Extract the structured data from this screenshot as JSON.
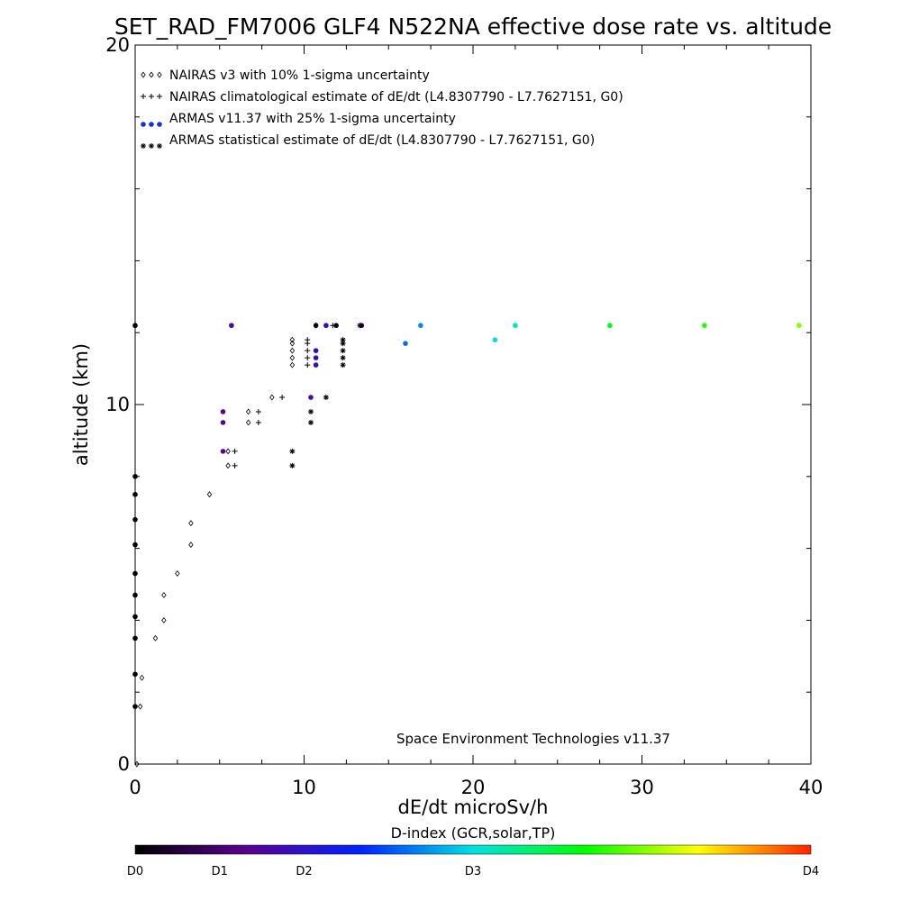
{
  "chart_data": {
    "type": "scatter",
    "title": "SET_RAD_FM7006  GLF4 N522NA effective dose rate vs. altitude",
    "xlabel": "dE/dt microSv/h",
    "ylabel": "altitude (km)",
    "xlim": [
      0,
      40
    ],
    "ylim": [
      0,
      20
    ],
    "x_ticks": [
      0,
      10,
      20,
      30,
      40
    ],
    "y_ticks": [
      0,
      10,
      20
    ],
    "grid": false,
    "legend_position": "top-left",
    "credit": "Space Environment Technologies v11.37",
    "legend": [
      {
        "label": "NAIRAS v3 with 10% 1-sigma uncertainty",
        "marker": "diamond"
      },
      {
        "label": "NAIRAS climatological estimate of dE/dt (L4.8307790 - L7.7627151, G0)",
        "marker": "plus"
      },
      {
        "label": "ARMAS v11.37 with 25% 1-sigma uncertainty",
        "marker": "dot"
      },
      {
        "label": "ARMAS statistical estimate of dE/dt (L4.8307790 - L7.7627151, G0)",
        "marker": "asterisk"
      }
    ],
    "colorbar": {
      "title": "D-index (GCR,solar,TP)",
      "labels": [
        "D0",
        "D1",
        "D2",
        "D3",
        "D4"
      ],
      "colors": [
        "#000000",
        "#5a0090",
        "#0022ff",
        "#00e0e0",
        "#00ff00",
        "#ffff00",
        "#ff2200"
      ]
    },
    "series": [
      {
        "name": "NAIRAS v3 with 10% 1-sigma uncertainty",
        "points": [
          [
            0.1,
            0.0
          ],
          [
            0.3,
            1.6
          ],
          [
            0.4,
            2.4
          ],
          [
            1.2,
            3.5
          ],
          [
            1.7,
            4.0
          ],
          [
            1.7,
            4.7
          ],
          [
            2.5,
            5.3
          ],
          [
            3.3,
            6.1
          ],
          [
            3.3,
            6.7
          ],
          [
            4.4,
            7.5
          ],
          [
            5.5,
            8.3
          ],
          [
            5.5,
            8.7
          ],
          [
            6.7,
            9.5
          ],
          [
            6.7,
            9.8
          ],
          [
            8.1,
            10.2
          ],
          [
            9.3,
            11.1
          ],
          [
            9.3,
            11.3
          ],
          [
            9.3,
            11.5
          ],
          [
            9.3,
            11.7
          ],
          [
            9.3,
            11.8
          ],
          [
            10.7,
            12.2
          ]
        ]
      },
      {
        "name": "NAIRAS climatological estimate of dE/dt (L4.8307790 - L7.7627151, G0)",
        "points": [
          [
            5.9,
            8.3
          ],
          [
            5.9,
            8.7
          ],
          [
            7.3,
            9.5
          ],
          [
            7.3,
            9.8
          ],
          [
            8.7,
            10.2
          ],
          [
            10.2,
            11.1
          ],
          [
            10.2,
            11.3
          ],
          [
            10.2,
            11.5
          ],
          [
            10.2,
            11.7
          ],
          [
            10.2,
            11.8
          ],
          [
            11.7,
            12.2
          ]
        ]
      },
      {
        "name": "ARMAS v11.37 with 25% 1-sigma uncertainty",
        "points": [
          {
            "x": 0.0,
            "y": 12.2,
            "d": 0.0
          },
          {
            "x": 0.0,
            "y": 8.0,
            "d": 0.0
          },
          {
            "x": 0.0,
            "y": 7.5,
            "d": 0.0
          },
          {
            "x": 0.0,
            "y": 6.8,
            "d": 0.0
          },
          {
            "x": 0.0,
            "y": 6.1,
            "d": 0.0
          },
          {
            "x": 0.0,
            "y": 5.3,
            "d": 0.0
          },
          {
            "x": 0.0,
            "y": 4.7,
            "d": 0.0
          },
          {
            "x": 0.0,
            "y": 4.1,
            "d": 0.0
          },
          {
            "x": 0.0,
            "y": 3.5,
            "d": 0.0
          },
          {
            "x": 0.0,
            "y": 2.5,
            "d": 0.0
          },
          {
            "x": 0.0,
            "y": 1.6,
            "d": 0.0
          },
          {
            "x": 5.2,
            "y": 8.7,
            "d": 0.7
          },
          {
            "x": 5.2,
            "y": 9.5,
            "d": 0.7
          },
          {
            "x": 5.2,
            "y": 9.8,
            "d": 0.7
          },
          {
            "x": 5.7,
            "y": 12.2,
            "d": 0.8
          },
          {
            "x": 10.4,
            "y": 10.2,
            "d": 0.9
          },
          {
            "x": 10.7,
            "y": 11.1,
            "d": 0.9
          },
          {
            "x": 10.7,
            "y": 11.3,
            "d": 0.9
          },
          {
            "x": 10.7,
            "y": 11.5,
            "d": 0.9
          },
          {
            "x": 10.7,
            "y": 12.2,
            "d": 0.1
          },
          {
            "x": 11.3,
            "y": 12.2,
            "d": 0.9
          },
          {
            "x": 11.9,
            "y": 12.2,
            "d": 0.1
          },
          {
            "x": 13.4,
            "y": 12.2,
            "d": 0.2
          },
          {
            "x": 16.0,
            "y": 11.7,
            "d": 1.6
          },
          {
            "x": 16.9,
            "y": 12.2,
            "d": 1.7
          },
          {
            "x": 21.3,
            "y": 11.8,
            "d": 2.0
          },
          {
            "x": 22.5,
            "y": 12.2,
            "d": 2.1
          },
          {
            "x": 28.1,
            "y": 12.2,
            "d": 2.6
          },
          {
            "x": 33.7,
            "y": 12.2,
            "d": 2.75
          },
          {
            "x": 39.3,
            "y": 12.2,
            "d": 3.0
          }
        ]
      },
      {
        "name": "ARMAS statistical estimate of dE/dt (L4.8307790 - L7.7627151, G0)",
        "points": [
          [
            9.3,
            8.3
          ],
          [
            9.3,
            8.7
          ],
          [
            10.4,
            9.5
          ],
          [
            10.4,
            9.8
          ],
          [
            11.3,
            10.2
          ],
          [
            12.3,
            11.1
          ],
          [
            12.3,
            11.3
          ],
          [
            12.3,
            11.5
          ],
          [
            12.3,
            11.7
          ],
          [
            12.3,
            11.8
          ],
          [
            13.3,
            12.2
          ]
        ]
      }
    ]
  }
}
